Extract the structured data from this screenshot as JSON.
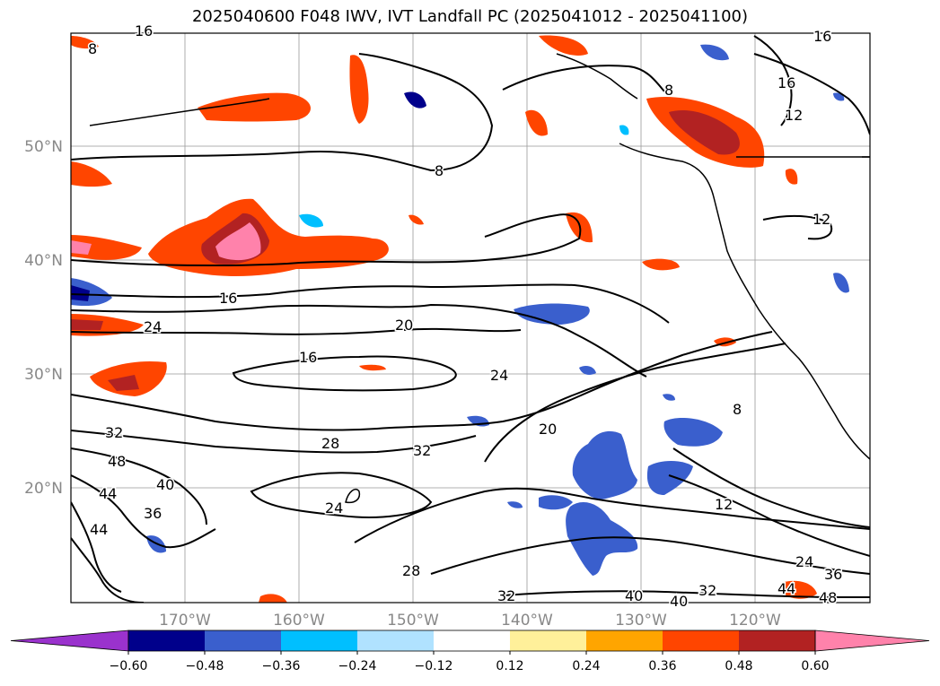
{
  "title": "2025040600 F048 IWV, IVT Landfall PC (2025041012 - 2025041100)",
  "lat_labels": [
    "50°N",
    "40°N",
    "30°N",
    "20°N"
  ],
  "lon_labels": [
    "170°W",
    "160°W",
    "150°W",
    "140°W",
    "130°W",
    "120°W"
  ],
  "contour_labels": [
    "8",
    "8",
    "8",
    "16",
    "16",
    "12",
    "12",
    "16",
    "24",
    "20",
    "16",
    "24",
    "20",
    "8",
    "28",
    "32",
    "32",
    "48",
    "40",
    "44",
    "36",
    "44",
    "24",
    "28",
    "12",
    "32",
    "40",
    "40",
    "32",
    "24",
    "36",
    "44",
    "48",
    "16"
  ],
  "colorbar": {
    "colors": [
      "#9a32cd",
      "#00008b",
      "#3a5fcd",
      "#00bfff",
      "#b0e2ff",
      "#ffffff",
      "#fff09a",
      "#ffa500",
      "#ff4500",
      "#b22222",
      "#ff82ab"
    ],
    "tick_labels": [
      "−0.60",
      "−0.48",
      "−0.36",
      "−0.24",
      "−0.12",
      "0.12",
      "0.24",
      "0.36",
      "0.48",
      "0.60"
    ]
  }
}
